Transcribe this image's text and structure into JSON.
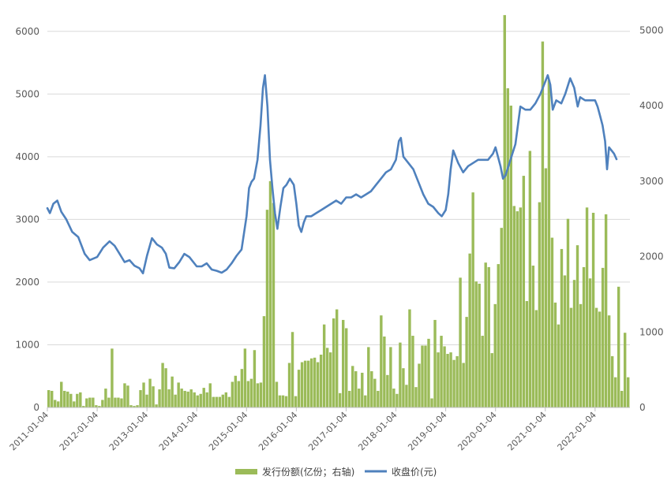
{
  "chart_data": {
    "type": "bar+line",
    "title": "",
    "x_ticks": [
      "2011-01-04",
      "2012-01-04",
      "2013-01-04",
      "2014-01-04",
      "2015-01-04",
      "2016-01-04",
      "2017-01-04",
      "2018-01-04",
      "2019-01-04",
      "2020-01-04",
      "2021-01-04",
      "2022-01-04"
    ],
    "x_range": [
      2011.0,
      2022.7
    ],
    "y_left": {
      "ticks": [
        0,
        1000,
        2000,
        3000,
        4000,
        5000,
        6000
      ],
      "lim": [
        0,
        6500
      ]
    },
    "y_right": {
      "ticks": [
        0,
        1000,
        2000,
        3000,
        4000,
        5000
      ],
      "lim": [
        0,
        5400
      ]
    },
    "grid": true,
    "legend_position": "bottom",
    "colors": {
      "bar": "#9bbb59",
      "line": "#4f81bd",
      "grid": "#d9d9d9",
      "axis": "#bfbfbf"
    },
    "series": [
      {
        "name": "发行份额(亿份；右轴)",
        "type": "bar",
        "axis": "right",
        "values": [
          230,
          220,
          100,
          80,
          340,
          220,
          210,
          180,
          80,
          180,
          200,
          20,
          120,
          130,
          130,
          30,
          20,
          100,
          250,
          130,
          780,
          130,
          130,
          120,
          320,
          290,
          30,
          20,
          30,
          230,
          330,
          170,
          380,
          280,
          40,
          240,
          590,
          520,
          240,
          410,
          170,
          330,
          250,
          220,
          210,
          240,
          200,
          160,
          180,
          260,
          200,
          320,
          140,
          140,
          140,
          170,
          200,
          140,
          340,
          420,
          350,
          510,
          780,
          350,
          380,
          760,
          320,
          330,
          1210,
          2620,
          3000,
          2710,
          340,
          160,
          160,
          150,
          590,
          1000,
          150,
          500,
          600,
          620,
          620,
          650,
          660,
          600,
          700,
          1100,
          790,
          730,
          1180,
          1300,
          190,
          1160,
          1050,
          220,
          550,
          480,
          250,
          460,
          160,
          800,
          480,
          380,
          220,
          1220,
          940,
          430,
          800,
          250,
          180,
          860,
          520,
          300,
          1300,
          950,
          270,
          580,
          820,
          820,
          910,
          120,
          1160,
          730,
          950,
          810,
          710,
          730,
          630,
          680,
          1720,
          590,
          1200,
          2040,
          2850,
          1670,
          1640,
          950,
          1920,
          1860,
          720,
          1370,
          1900,
          2380,
          5200,
          4230,
          4000,
          2670,
          2600,
          2650,
          3070,
          1410,
          3400,
          1880,
          1290,
          2720,
          4850,
          3170,
          4340,
          2250,
          1390,
          1100,
          2100,
          1750,
          2500,
          1320,
          1690,
          2150,
          1370,
          1860,
          2650,
          1710,
          2580,
          1320,
          1270,
          1850,
          2560,
          1220,
          680,
          400,
          1600,
          220,
          990,
          400
        ]
      },
      {
        "name": "收盘价(元)",
        "type": "line",
        "axis": "left",
        "points": [
          [
            2011.0,
            3180
          ],
          [
            2011.05,
            3100
          ],
          [
            2011.12,
            3250
          ],
          [
            2011.2,
            3300
          ],
          [
            2011.28,
            3120
          ],
          [
            2011.38,
            3000
          ],
          [
            2011.5,
            2800
          ],
          [
            2011.62,
            2720
          ],
          [
            2011.75,
            2450
          ],
          [
            2011.85,
            2350
          ],
          [
            2012.0,
            2400
          ],
          [
            2012.12,
            2550
          ],
          [
            2012.25,
            2650
          ],
          [
            2012.35,
            2580
          ],
          [
            2012.45,
            2450
          ],
          [
            2012.55,
            2320
          ],
          [
            2012.65,
            2350
          ],
          [
            2012.75,
            2260
          ],
          [
            2012.85,
            2220
          ],
          [
            2012.92,
            2140
          ],
          [
            2013.0,
            2420
          ],
          [
            2013.1,
            2700
          ],
          [
            2013.2,
            2600
          ],
          [
            2013.3,
            2550
          ],
          [
            2013.38,
            2450
          ],
          [
            2013.45,
            2230
          ],
          [
            2013.55,
            2220
          ],
          [
            2013.65,
            2320
          ],
          [
            2013.75,
            2450
          ],
          [
            2013.85,
            2400
          ],
          [
            2014.0,
            2250
          ],
          [
            2014.1,
            2250
          ],
          [
            2014.2,
            2300
          ],
          [
            2014.3,
            2200
          ],
          [
            2014.4,
            2180
          ],
          [
            2014.5,
            2150
          ],
          [
            2014.6,
            2200
          ],
          [
            2014.7,
            2300
          ],
          [
            2014.8,
            2420
          ],
          [
            2014.9,
            2520
          ],
          [
            2015.0,
            3050
          ],
          [
            2015.05,
            3500
          ],
          [
            2015.1,
            3600
          ],
          [
            2015.15,
            3650
          ],
          [
            2015.22,
            3950
          ],
          [
            2015.28,
            4500
          ],
          [
            2015.33,
            5100
          ],
          [
            2015.37,
            5300
          ],
          [
            2015.42,
            4800
          ],
          [
            2015.47,
            3950
          ],
          [
            2015.52,
            3500
          ],
          [
            2015.57,
            3100
          ],
          [
            2015.62,
            2850
          ],
          [
            2015.68,
            3200
          ],
          [
            2015.74,
            3500
          ],
          [
            2015.8,
            3550
          ],
          [
            2015.87,
            3650
          ],
          [
            2015.95,
            3550
          ],
          [
            2016.0,
            3250
          ],
          [
            2016.05,
            2900
          ],
          [
            2016.1,
            2800
          ],
          [
            2016.15,
            2950
          ],
          [
            2016.2,
            3050
          ],
          [
            2016.3,
            3050
          ],
          [
            2016.4,
            3100
          ],
          [
            2016.5,
            3150
          ],
          [
            2016.6,
            3200
          ],
          [
            2016.7,
            3250
          ],
          [
            2016.8,
            3300
          ],
          [
            2016.9,
            3250
          ],
          [
            2017.0,
            3350
          ],
          [
            2017.1,
            3350
          ],
          [
            2017.2,
            3400
          ],
          [
            2017.3,
            3350
          ],
          [
            2017.4,
            3400
          ],
          [
            2017.5,
            3450
          ],
          [
            2017.6,
            3550
          ],
          [
            2017.7,
            3650
          ],
          [
            2017.8,
            3750
          ],
          [
            2017.9,
            3800
          ],
          [
            2018.0,
            3950
          ],
          [
            2018.06,
            4250
          ],
          [
            2018.1,
            4300
          ],
          [
            2018.15,
            4000
          ],
          [
            2018.25,
            3900
          ],
          [
            2018.35,
            3800
          ],
          [
            2018.45,
            3600
          ],
          [
            2018.55,
            3400
          ],
          [
            2018.65,
            3250
          ],
          [
            2018.75,
            3200
          ],
          [
            2018.85,
            3100
          ],
          [
            2018.92,
            3050
          ],
          [
            2019.0,
            3150
          ],
          [
            2019.05,
            3400
          ],
          [
            2019.1,
            3800
          ],
          [
            2019.15,
            4100
          ],
          [
            2019.25,
            3900
          ],
          [
            2019.35,
            3750
          ],
          [
            2019.45,
            3850
          ],
          [
            2019.55,
            3900
          ],
          [
            2019.65,
            3950
          ],
          [
            2019.75,
            3950
          ],
          [
            2019.85,
            3950
          ],
          [
            2019.95,
            4050
          ],
          [
            2020.0,
            4150
          ],
          [
            2020.05,
            4000
          ],
          [
            2020.1,
            3850
          ],
          [
            2020.15,
            3650
          ],
          [
            2020.2,
            3700
          ],
          [
            2020.3,
            3950
          ],
          [
            2020.4,
            4200
          ],
          [
            2020.5,
            4800
          ],
          [
            2020.6,
            4750
          ],
          [
            2020.7,
            4750
          ],
          [
            2020.8,
            4850
          ],
          [
            2020.9,
            5000
          ],
          [
            2021.0,
            5200
          ],
          [
            2021.05,
            5300
          ],
          [
            2021.1,
            5150
          ],
          [
            2021.15,
            4750
          ],
          [
            2021.22,
            4900
          ],
          [
            2021.32,
            4850
          ],
          [
            2021.4,
            5000
          ],
          [
            2021.5,
            5250
          ],
          [
            2021.58,
            5100
          ],
          [
            2021.65,
            4800
          ],
          [
            2021.7,
            4950
          ],
          [
            2021.8,
            4900
          ],
          [
            2021.9,
            4900
          ],
          [
            2022.0,
            4900
          ],
          [
            2022.05,
            4800
          ],
          [
            2022.1,
            4650
          ],
          [
            2022.15,
            4500
          ],
          [
            2022.2,
            4250
          ],
          [
            2022.24,
            3800
          ],
          [
            2022.28,
            4150
          ],
          [
            2022.33,
            4100
          ],
          [
            2022.38,
            4050
          ],
          [
            2022.43,
            3960
          ]
        ]
      }
    ]
  },
  "legend": {
    "bar_label": "发行份额(亿份；右轴)",
    "line_label": "收盘价(元)"
  }
}
